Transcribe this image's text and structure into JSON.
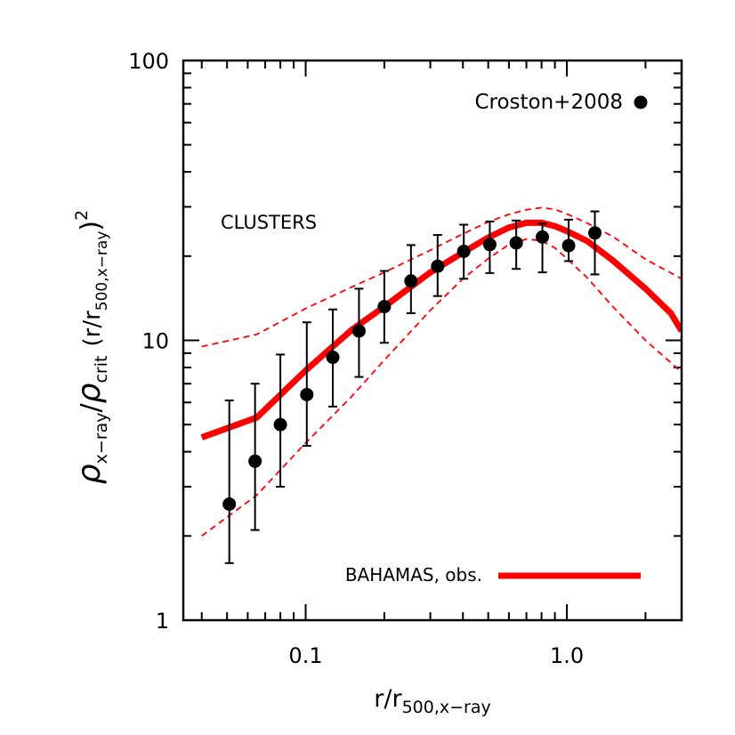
{
  "chart_data": {
    "type": "line",
    "title": "",
    "xlabel": "r/r",
    "xlabel_sub": "500,x−ray",
    "ylabel": {
      "rho1": "ρ",
      "sub1": "x−ray",
      "slash": "/",
      "rho2": "ρ",
      "sub2": "crit",
      "open": "(r/r",
      "sub3": "500,x−ray",
      "close": ")",
      "sup": "2"
    },
    "xscale": "log",
    "yscale": "log",
    "xlim": [
      0.034,
      2.75
    ],
    "ylim": [
      1,
      100
    ],
    "x_ticks": [
      0.1,
      1.0
    ],
    "x_tick_labels": [
      "0.1",
      "1.0"
    ],
    "y_ticks": [
      1,
      10,
      100
    ],
    "y_tick_labels": [
      "1",
      "10",
      "100"
    ],
    "annotation": "CLUSTERS",
    "legend_placement": "top-right / bottom-right",
    "series": [
      {
        "name": "Croston+2008",
        "kind": "scatter-errorbar",
        "color": "#000000",
        "x": [
          0.051,
          0.064,
          0.08,
          0.101,
          0.127,
          0.16,
          0.2,
          0.253,
          0.32,
          0.403,
          0.507,
          0.64,
          0.806,
          1.016,
          1.28
        ],
        "y": [
          2.6,
          3.7,
          5.0,
          6.4,
          8.7,
          10.8,
          13.2,
          16.3,
          18.4,
          20.8,
          22.0,
          22.3,
          23.4,
          21.8,
          24.2
        ],
        "y_low": [
          1.6,
          2.1,
          3.0,
          4.2,
          5.8,
          7.4,
          9.8,
          12.5,
          14.4,
          16.6,
          17.4,
          18.0,
          17.5,
          19.2,
          17.2
        ],
        "y_high": [
          6.1,
          7.0,
          8.9,
          11.6,
          12.9,
          15.3,
          17.7,
          21.9,
          23.8,
          25.9,
          26.6,
          26.8,
          26.1,
          27.0,
          28.9
        ]
      },
      {
        "name": "BAHAMAS, obs.",
        "kind": "line",
        "color": "#ff0000",
        "x": [
          0.04,
          0.065,
          0.1,
          0.15,
          0.2,
          0.3,
          0.4,
          0.5,
          0.6,
          0.7,
          0.8,
          0.9,
          1.0,
          1.2,
          1.5,
          2.0,
          2.5,
          2.75
        ],
        "y": [
          4.5,
          5.3,
          7.8,
          10.9,
          13.2,
          17.5,
          20.6,
          23.3,
          25.3,
          26.3,
          26.3,
          25.6,
          24.6,
          22.6,
          19.3,
          15.3,
          12.5,
          10.8
        ]
      },
      {
        "name": "",
        "kind": "line-dashed",
        "color": "#ff0000",
        "x": [
          0.04,
          0.065,
          0.1,
          0.15,
          0.2,
          0.3,
          0.4,
          0.5,
          0.6,
          0.7,
          0.8,
          0.9,
          1.0,
          1.2,
          1.5,
          2.0,
          2.75
        ],
        "y": [
          9.5,
          10.5,
          13.0,
          15.5,
          17.5,
          21.0,
          24.0,
          26.5,
          28.2,
          29.3,
          29.8,
          29.4,
          28.3,
          26.2,
          23.5,
          19.5,
          16.6
        ]
      },
      {
        "name": "",
        "kind": "line-dashed",
        "color": "#ff0000",
        "x": [
          0.04,
          0.065,
          0.1,
          0.15,
          0.2,
          0.3,
          0.4,
          0.5,
          0.6,
          0.7,
          0.8,
          0.9,
          1.0,
          1.2,
          1.5,
          2.0,
          2.75
        ],
        "y": [
          2.0,
          2.8,
          4.3,
          6.3,
          8.5,
          12.8,
          16.6,
          19.6,
          22.0,
          23.0,
          22.7,
          21.4,
          19.6,
          16.7,
          13.2,
          10.0,
          7.7
        ]
      }
    ]
  }
}
